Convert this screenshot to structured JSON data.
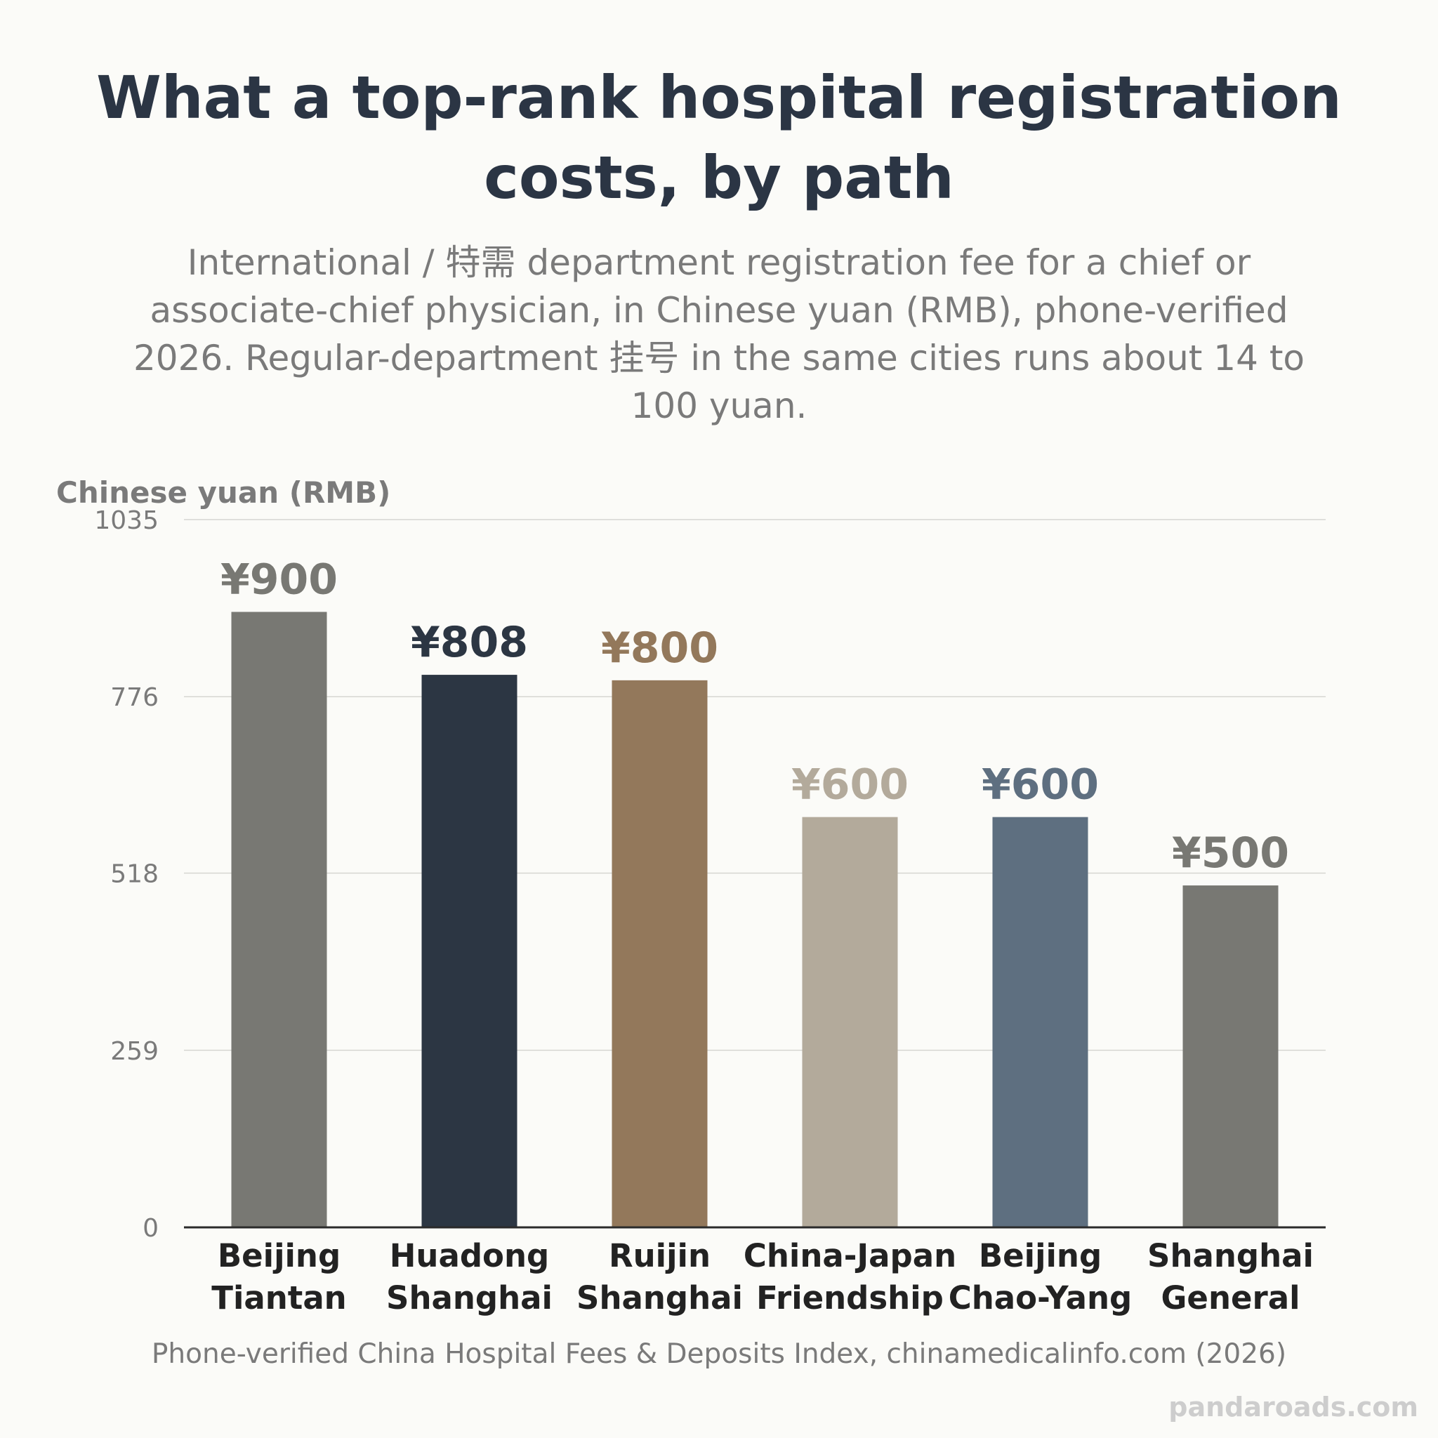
{
  "header": {
    "title": "What a top-rank hospital registration costs, by path",
    "subtitle": "International / 特需 department registration fee for a chief or associate-chief physician, in Chinese yuan (RMB), phone-verified 2026. Regular-department 挂号 in the same cities runs about 14 to 100 yuan."
  },
  "footer": {
    "source": "Phone-verified China Hospital Fees & Deposits Index, chinamedicalinfo.com (2026)",
    "watermark": "pandaroads.com"
  },
  "chart_data": {
    "type": "bar",
    "ylabel": "Chinese yuan (RMB)",
    "xlabel": "",
    "ylim": [
      0,
      1035
    ],
    "yticks": [
      0,
      259,
      518,
      776,
      1035
    ],
    "grid": true,
    "legend": "none",
    "categories": [
      [
        "Beijing",
        "Tiantan"
      ],
      [
        "Huadong",
        "Shanghai"
      ],
      [
        "Ruijin",
        "Shanghai"
      ],
      [
        "China-Japan",
        "Friendship"
      ],
      [
        "Beijing",
        "Chao-Yang"
      ],
      [
        "Shanghai",
        "General"
      ]
    ],
    "values": [
      900,
      808,
      800,
      600,
      600,
      500
    ],
    "value_labels": [
      "¥900",
      "¥808",
      "¥800",
      "¥600",
      "¥600",
      "¥500"
    ],
    "colors": [
      "#787873",
      "#2c3643",
      "#93785b",
      "#b3aa9b",
      "#5e6f80",
      "#787873"
    ]
  }
}
